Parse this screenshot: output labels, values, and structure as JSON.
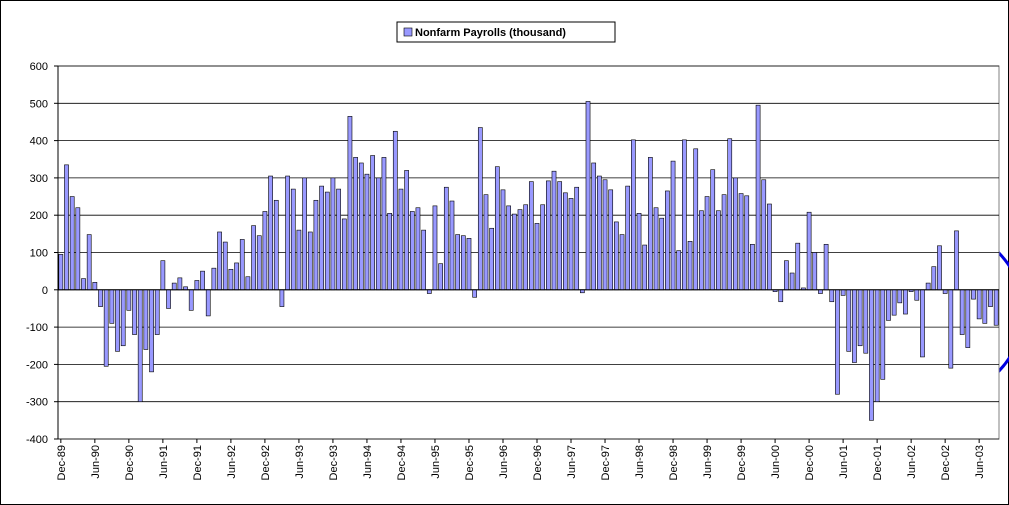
{
  "chart_data": {
    "type": "bar",
    "categories": [
      "Dec-89",
      null,
      null,
      null,
      null,
      null,
      "Jun-90",
      null,
      null,
      null,
      null,
      null,
      "Dec-90",
      null,
      null,
      null,
      null,
      null,
      "Jun-91",
      null,
      null,
      null,
      null,
      null,
      "Dec-91",
      null,
      null,
      null,
      null,
      null,
      "Jun-92",
      null,
      null,
      null,
      null,
      null,
      "Dec-92",
      null,
      null,
      null,
      null,
      null,
      "Jun-93",
      null,
      null,
      null,
      null,
      null,
      "Dec-93",
      null,
      null,
      null,
      null,
      null,
      "Jun-94",
      null,
      null,
      null,
      null,
      null,
      "Dec-94",
      null,
      null,
      null,
      null,
      null,
      "Jun-95",
      null,
      null,
      null,
      null,
      null,
      "Dec-95",
      null,
      null,
      null,
      null,
      null,
      "Jun-96",
      null,
      null,
      null,
      null,
      null,
      "Dec-96",
      null,
      null,
      null,
      null,
      null,
      "Jun-97",
      null,
      null,
      null,
      null,
      null,
      "Dec-97",
      null,
      null,
      null,
      null,
      null,
      "Jun-98",
      null,
      null,
      null,
      null,
      null,
      "Dec-98",
      null,
      null,
      null,
      null,
      null,
      "Jun-99",
      null,
      null,
      null,
      null,
      null,
      "Dec-99",
      null,
      null,
      null,
      null,
      null,
      "Jun-00",
      null,
      null,
      null,
      null,
      null,
      "Dec-00",
      null,
      null,
      null,
      null,
      null,
      "Jun-01",
      null,
      null,
      null,
      null,
      null,
      "Dec-01",
      null,
      null,
      null,
      null,
      null,
      "Jun-02",
      null,
      null,
      null,
      null,
      null,
      "Dec-02",
      null,
      null,
      null,
      null,
      null,
      "Jun-03",
      null,
      null,
      null
    ],
    "series": [
      {
        "name": "Nonfarm Payrolls (thousand)",
        "color": "#9999ff",
        "values": [
          95,
          335,
          250,
          220,
          30,
          148,
          20,
          -45,
          -205,
          -90,
          -165,
          -150,
          -55,
          -120,
          -300,
          -160,
          -220,
          -120,
          78,
          -50,
          18,
          32,
          8,
          -55,
          25,
          50,
          -70,
          58,
          155,
          128,
          55,
          72,
          135,
          35,
          172,
          145,
          210,
          305,
          240,
          -45,
          305,
          270,
          160,
          300,
          155,
          240,
          278,
          262,
          300,
          270,
          190,
          465,
          355,
          340,
          310,
          360,
          300,
          355,
          205,
          425,
          270,
          320,
          210,
          220,
          160,
          -10,
          225,
          70,
          275,
          238,
          148,
          145,
          138,
          -20,
          435,
          255,
          165,
          330,
          268,
          225,
          203,
          215,
          228,
          290,
          178,
          228,
          292,
          318,
          290,
          260,
          245,
          275,
          -8,
          505,
          340,
          305,
          295,
          268,
          182,
          148,
          278,
          402,
          205,
          120,
          355,
          220,
          192,
          265,
          345,
          105,
          402,
          130,
          378,
          212,
          250,
          322,
          212,
          255,
          405,
          300,
          258,
          252,
          122,
          495,
          295,
          230,
          -5,
          -32,
          78,
          45,
          125,
          5,
          208,
          100,
          -10,
          122,
          -32,
          -280,
          -15,
          -165,
          -195,
          -150,
          -170,
          -350,
          -300,
          -240,
          -82,
          -68,
          -35,
          -65,
          -5,
          -28,
          -180,
          18,
          62,
          118,
          -10,
          -210,
          158,
          -120,
          -155,
          -25,
          -78,
          -90,
          -45,
          -95
        ]
      }
    ],
    "ylim": [
      -400,
      600
    ],
    "yticks": [
      -400,
      -300,
      -200,
      -100,
      0,
      100,
      200,
      300,
      400,
      500,
      600
    ],
    "grid": true,
    "legend": "top"
  }
}
